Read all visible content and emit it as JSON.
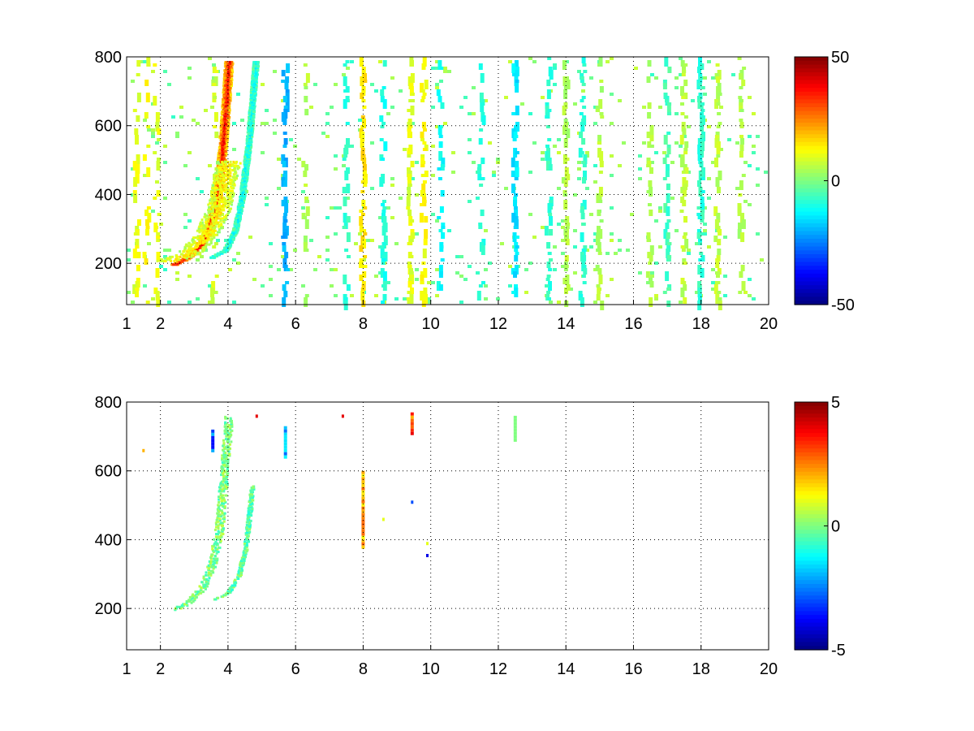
{
  "colors": {
    "background": "#ffffff",
    "axis": "#000000",
    "colormap": "jet"
  },
  "chart_data": [
    {
      "type": "heatmap",
      "title": "",
      "xlabel": "",
      "ylabel": "",
      "xlim": [
        1,
        20
      ],
      "ylim": [
        80,
        800
      ],
      "x_ticks": [
        1,
        2,
        4,
        6,
        8,
        10,
        12,
        14,
        16,
        18,
        20
      ],
      "x_tick_labels": [
        "1",
        "2",
        "4",
        "6",
        "8",
        "10",
        "12",
        "14",
        "16",
        "18",
        "20"
      ],
      "y_ticks": [
        200,
        400,
        600,
        800
      ],
      "y_tick_labels": [
        "200",
        "400",
        "600",
        "800"
      ],
      "grid": true,
      "colorbar": {
        "limits": [
          -50,
          50
        ],
        "ticks": [
          50,
          0,
          -50
        ],
        "tick_labels": [
          "50",
          "0",
          "-50"
        ],
        "colormap": "jet"
      },
      "features": [
        {
          "kind": "curve",
          "x": [
            2.4,
            2.8,
            3.2,
            3.5,
            3.7,
            3.8,
            3.9,
            4.0
          ],
          "y": [
            200,
            220,
            260,
            330,
            420,
            520,
            640,
            790
          ],
          "value": 40,
          "spread": 0.12
        },
        {
          "kind": "curve",
          "x": [
            3.5,
            3.9,
            4.2,
            4.4,
            4.6,
            4.8
          ],
          "y": [
            220,
            240,
            300,
            400,
            560,
            790
          ],
          "value": -12,
          "spread": 0.08
        },
        {
          "kind": "curve",
          "x": [
            2.2,
            2.8,
            3.3,
            3.7,
            4.0
          ],
          "y": [
            210,
            230,
            280,
            360,
            500
          ],
          "value": 14,
          "spread": 0.35
        }
      ],
      "columns": [
        {
          "x": 1.3,
          "density": 0.35,
          "value": 10
        },
        {
          "x": 1.6,
          "density": 0.3,
          "value": 12
        },
        {
          "x": 1.9,
          "density": 0.3,
          "value": 10
        },
        {
          "x": 3.6,
          "density": 0.5,
          "value": 8
        },
        {
          "x": 5.7,
          "density": 0.55,
          "value": -20
        },
        {
          "x": 6.3,
          "density": 0.3,
          "value": 5
        },
        {
          "x": 7.5,
          "density": 0.35,
          "value": -8
        },
        {
          "x": 8.0,
          "density": 0.55,
          "value": 15
        },
        {
          "x": 8.6,
          "density": 0.45,
          "value": -10
        },
        {
          "x": 9.4,
          "density": 0.6,
          "value": 10
        },
        {
          "x": 9.8,
          "density": 0.5,
          "value": 12
        },
        {
          "x": 10.3,
          "density": 0.4,
          "value": -12
        },
        {
          "x": 11.5,
          "density": 0.35,
          "value": -8
        },
        {
          "x": 12.5,
          "density": 0.55,
          "value": -15
        },
        {
          "x": 13.5,
          "density": 0.45,
          "value": -8
        },
        {
          "x": 14.0,
          "density": 0.4,
          "value": 5
        },
        {
          "x": 14.5,
          "density": 0.5,
          "value": -8
        },
        {
          "x": 15.0,
          "density": 0.4,
          "value": 5
        },
        {
          "x": 16.5,
          "density": 0.35,
          "value": 5
        },
        {
          "x": 17.0,
          "density": 0.4,
          "value": -6
        },
        {
          "x": 17.5,
          "density": 0.55,
          "value": 6
        },
        {
          "x": 18.0,
          "density": 0.75,
          "value": -8
        },
        {
          "x": 18.5,
          "density": 0.5,
          "value": 6
        },
        {
          "x": 19.2,
          "density": 0.35,
          "value": 5
        }
      ],
      "background_noise": {
        "density": 0.1,
        "value_range": [
          -8,
          8
        ]
      }
    },
    {
      "type": "heatmap",
      "title": "",
      "xlabel": "",
      "ylabel": "",
      "xlim": [
        1,
        20
      ],
      "ylim": [
        80,
        800
      ],
      "x_ticks": [
        1,
        2,
        4,
        6,
        8,
        10,
        12,
        14,
        16,
        18,
        20
      ],
      "x_tick_labels": [
        "1",
        "2",
        "4",
        "6",
        "8",
        "10",
        "12",
        "14",
        "16",
        "18",
        "20"
      ],
      "y_ticks": [
        200,
        400,
        600,
        800
      ],
      "y_tick_labels": [
        "200",
        "400",
        "600",
        "800"
      ],
      "grid": true,
      "colorbar": {
        "limits": [
          -5,
          5
        ],
        "ticks": [
          5,
          0,
          -5
        ],
        "tick_labels": [
          "5",
          "0",
          "-5"
        ],
        "colormap": "jet"
      },
      "features": [
        {
          "kind": "curve",
          "x": [
            2.4,
            2.8,
            3.2,
            3.5,
            3.7,
            3.8,
            3.9,
            4.0
          ],
          "y": [
            200,
            220,
            260,
            330,
            420,
            520,
            640,
            760
          ],
          "value": 0,
          "spread": 0.12
        },
        {
          "kind": "curve",
          "x": [
            3.6,
            4.0,
            4.3,
            4.5,
            4.7
          ],
          "y": [
            230,
            250,
            300,
            380,
            560
          ],
          "value": -0.5,
          "spread": 0.06
        }
      ],
      "columns": [
        {
          "x": 5.7,
          "y_range": [
            640,
            730
          ],
          "value": -2
        },
        {
          "x": 8.0,
          "y_range": [
            375,
            600
          ],
          "value": 2
        },
        {
          "x": 9.45,
          "y_range": [
            710,
            770
          ],
          "value": 3
        },
        {
          "x": 12.5,
          "y_range": [
            690,
            760
          ],
          "value": 0
        },
        {
          "x": 3.55,
          "y_range": [
            660,
            720
          ],
          "value": -3
        }
      ],
      "points": [
        {
          "x": 4.85,
          "y": 760,
          "value": 4
        },
        {
          "x": 7.4,
          "y": 760,
          "value": 4
        },
        {
          "x": 9.45,
          "y": 510,
          "value": -3
        },
        {
          "x": 9.9,
          "y": 390,
          "value": 1
        },
        {
          "x": 9.9,
          "y": 355,
          "value": -4
        },
        {
          "x": 8.6,
          "y": 460,
          "value": 1
        },
        {
          "x": 1.5,
          "y": 660,
          "value": 2
        }
      ]
    }
  ]
}
